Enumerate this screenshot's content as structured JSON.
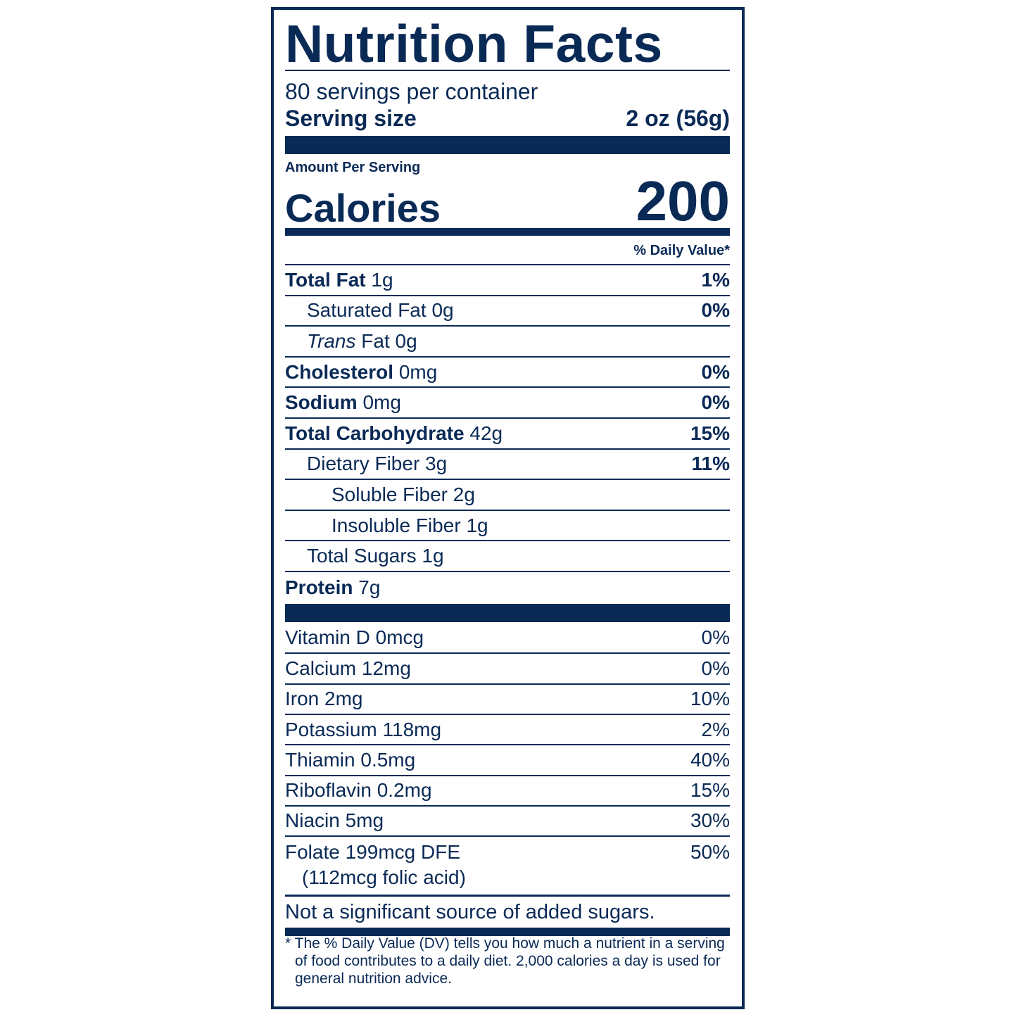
{
  "color": "#0a2a56",
  "title": "Nutrition Facts",
  "servings_per_container": "80 servings per container",
  "serving_size_label": "Serving size",
  "serving_size_value": "2 oz (56g)",
  "amount_per_serving": "Amount Per Serving",
  "calories_label": "Calories",
  "calories_value": "200",
  "daily_value_header": "% Daily Value*",
  "nutrients": [
    {
      "name": "Total Fat",
      "amount": "1g",
      "dv": "1%",
      "bold": true,
      "indent": 0
    },
    {
      "name": "Saturated Fat",
      "amount": "0g",
      "dv": "0%",
      "bold": false,
      "indent": 1
    },
    {
      "name": "Trans",
      "name_suffix": "Fat",
      "amount": "0g",
      "dv": "",
      "bold": false,
      "indent": 1,
      "italic_name": true
    },
    {
      "name": "Cholesterol",
      "amount": "0mg",
      "dv": "0%",
      "bold": true,
      "indent": 0
    },
    {
      "name": "Sodium",
      "amount": "0mg",
      "dv": "0%",
      "bold": true,
      "indent": 0
    },
    {
      "name": "Total Carbohydrate",
      "amount": "42g",
      "dv": "15%",
      "bold": true,
      "indent": 0
    },
    {
      "name": "Dietary Fiber",
      "amount": "3g",
      "dv": "11%",
      "bold": false,
      "indent": 1
    },
    {
      "name": "Soluble Fiber",
      "amount": "2g",
      "dv": "",
      "bold": false,
      "indent": 2
    },
    {
      "name": "Insoluble Fiber",
      "amount": "1g",
      "dv": "",
      "bold": false,
      "indent": 2
    },
    {
      "name": "Total Sugars",
      "amount": "1g",
      "dv": "",
      "bold": false,
      "indent": 1
    },
    {
      "name": "Protein",
      "amount": "7g",
      "dv": "",
      "bold": true,
      "indent": 0
    }
  ],
  "vitamins": [
    {
      "text": "Vitamin D 0mcg",
      "dv": "0%"
    },
    {
      "text": "Calcium 12mg",
      "dv": "0%"
    },
    {
      "text": "Iron 2mg",
      "dv": "10%"
    },
    {
      "text": "Potassium 118mg",
      "dv": "2%"
    },
    {
      "text": "Thiamin 0.5mg",
      "dv": "40%"
    },
    {
      "text": "Riboflavin 0.2mg",
      "dv": "15%"
    },
    {
      "text": "Niacin 5mg",
      "dv": "30%"
    },
    {
      "text": "Folate 199mcg DFE",
      "subtext": "(112mcg folic acid)",
      "dv": "50%"
    }
  ],
  "added_sugars_note": "Not a significant source of added sugars.",
  "footnote": "* The % Daily Value (DV) tells you how much a nutrient in a serving of food contributes to a daily diet. 2,000 calories a day is used for general nutrition advice."
}
